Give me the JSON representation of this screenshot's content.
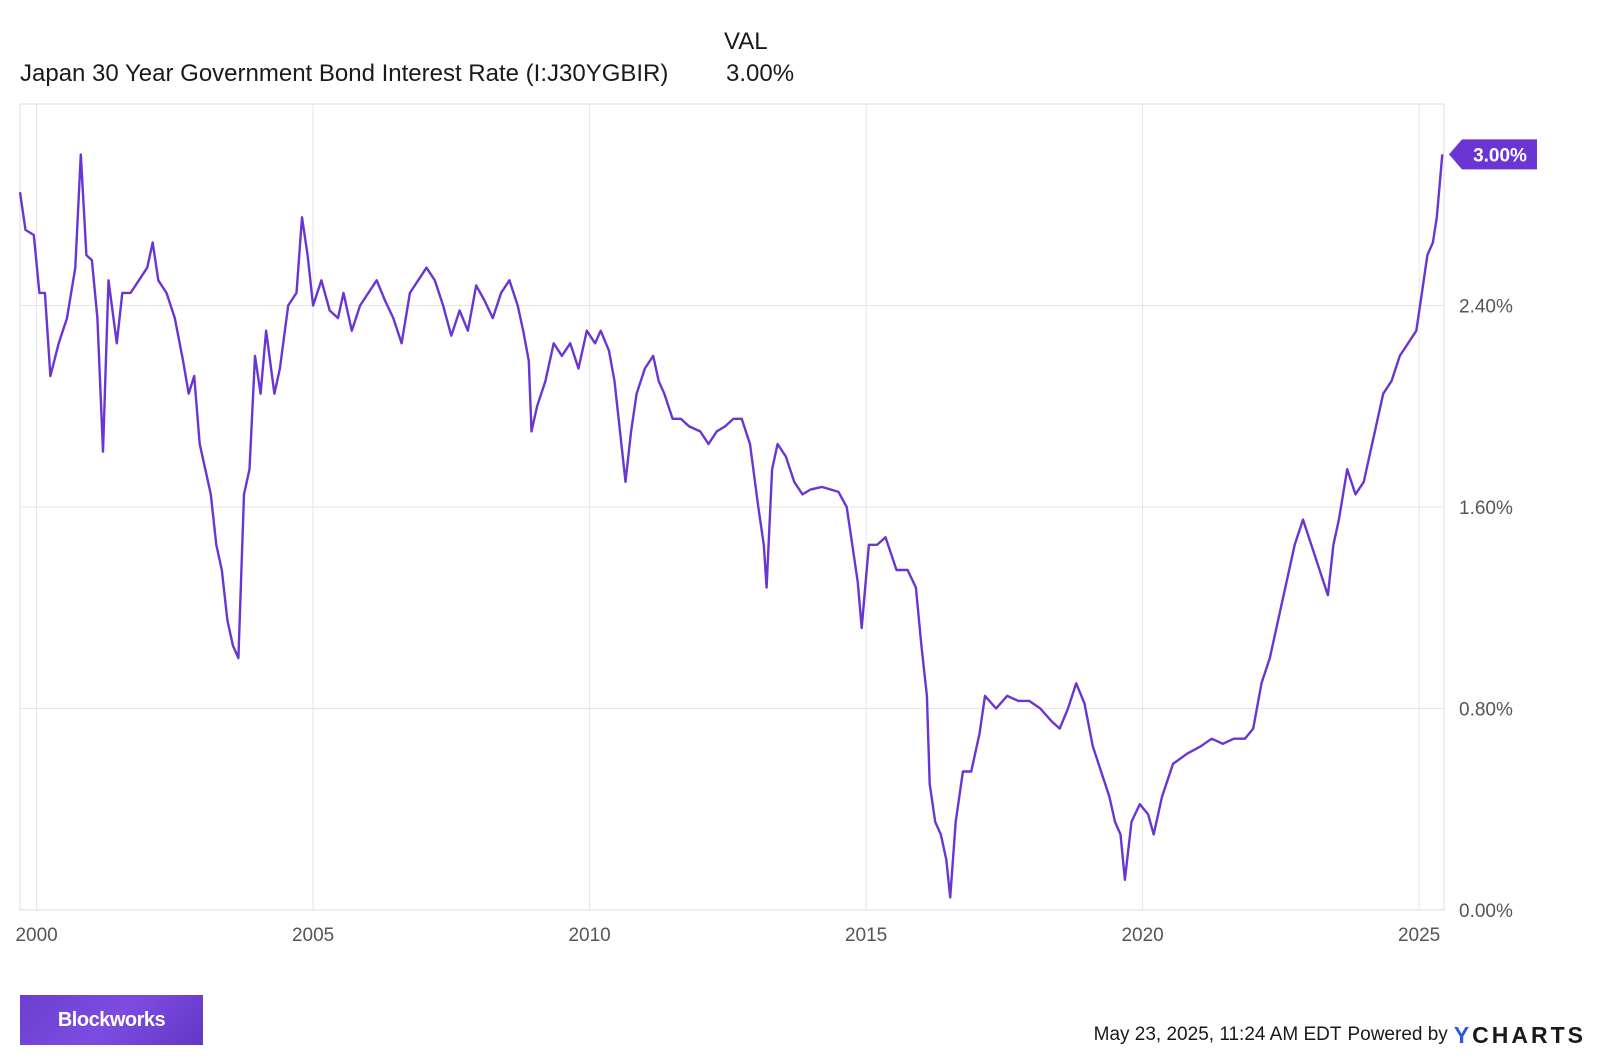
{
  "legend": {
    "column_header": "VAL",
    "series_name": "Japan 30 Year Government Bond Interest Rate (I:J30YGBIR)",
    "series_value": "3.00%"
  },
  "footer": {
    "logo_text": "Blockworks",
    "timestamp": "May 23, 2025, 11:24 AM EDT",
    "powered_by": "Powered by",
    "brand_y": "Y",
    "brand_rest": "CHARTS"
  },
  "colors": {
    "series": "#6a35d2",
    "grid": "#e6e6e6",
    "axis_text": "#555555"
  },
  "chart_data": {
    "type": "line",
    "title": "",
    "xlabel": "",
    "ylabel": "",
    "xlim": [
      1999.7,
      2025.45
    ],
    "ylim": [
      0,
      3.2
    ],
    "grid": true,
    "x_ticks": [
      2000,
      2005,
      2010,
      2015,
      2020,
      2025
    ],
    "x_tick_labels": [
      "2000",
      "2005",
      "2010",
      "2015",
      "2020",
      "2025"
    ],
    "y_ticks": [
      0,
      0.8,
      1.6,
      2.4
    ],
    "y_tick_labels": [
      "0.00%",
      "0.80%",
      "1.60%",
      "2.40%"
    ],
    "last_value_label": "3.00%",
    "series": [
      {
        "name": "Japan 30 Year Government Bond Interest Rate (I:J30YGBIR)",
        "points": [
          [
            1999.7,
            2.85
          ],
          [
            1999.8,
            2.7
          ],
          [
            1999.95,
            2.68
          ],
          [
            2000.05,
            2.45
          ],
          [
            2000.15,
            2.45
          ],
          [
            2000.25,
            2.12
          ],
          [
            2000.4,
            2.25
          ],
          [
            2000.55,
            2.35
          ],
          [
            2000.7,
            2.55
          ],
          [
            2000.8,
            3.0
          ],
          [
            2000.9,
            2.6
          ],
          [
            2001.0,
            2.58
          ],
          [
            2001.1,
            2.35
          ],
          [
            2001.2,
            1.82
          ],
          [
            2001.3,
            2.5
          ],
          [
            2001.45,
            2.25
          ],
          [
            2001.55,
            2.45
          ],
          [
            2001.7,
            2.45
          ],
          [
            2001.85,
            2.5
          ],
          [
            2002.0,
            2.55
          ],
          [
            2002.1,
            2.65
          ],
          [
            2002.2,
            2.5
          ],
          [
            2002.35,
            2.45
          ],
          [
            2002.5,
            2.35
          ],
          [
            2002.65,
            2.18
          ],
          [
            2002.75,
            2.05
          ],
          [
            2002.85,
            2.12
          ],
          [
            2002.95,
            1.85
          ],
          [
            2003.05,
            1.75
          ],
          [
            2003.15,
            1.65
          ],
          [
            2003.25,
            1.45
          ],
          [
            2003.35,
            1.35
          ],
          [
            2003.45,
            1.15
          ],
          [
            2003.55,
            1.05
          ],
          [
            2003.65,
            1.0
          ],
          [
            2003.75,
            1.65
          ],
          [
            2003.85,
            1.75
          ],
          [
            2003.95,
            2.2
          ],
          [
            2004.05,
            2.05
          ],
          [
            2004.15,
            2.3
          ],
          [
            2004.3,
            2.05
          ],
          [
            2004.4,
            2.15
          ],
          [
            2004.55,
            2.4
          ],
          [
            2004.7,
            2.45
          ],
          [
            2004.8,
            2.75
          ],
          [
            2004.9,
            2.6
          ],
          [
            2005.0,
            2.4
          ],
          [
            2005.15,
            2.5
          ],
          [
            2005.3,
            2.38
          ],
          [
            2005.45,
            2.35
          ],
          [
            2005.55,
            2.45
          ],
          [
            2005.7,
            2.3
          ],
          [
            2005.85,
            2.4
          ],
          [
            2006.0,
            2.45
          ],
          [
            2006.15,
            2.5
          ],
          [
            2006.3,
            2.42
          ],
          [
            2006.45,
            2.35
          ],
          [
            2006.6,
            2.25
          ],
          [
            2006.75,
            2.45
          ],
          [
            2006.9,
            2.5
          ],
          [
            2007.05,
            2.55
          ],
          [
            2007.2,
            2.5
          ],
          [
            2007.35,
            2.4
          ],
          [
            2007.5,
            2.28
          ],
          [
            2007.65,
            2.38
          ],
          [
            2007.8,
            2.3
          ],
          [
            2007.95,
            2.48
          ],
          [
            2008.1,
            2.42
          ],
          [
            2008.25,
            2.35
          ],
          [
            2008.4,
            2.45
          ],
          [
            2008.55,
            2.5
          ],
          [
            2008.7,
            2.4
          ],
          [
            2008.8,
            2.3
          ],
          [
            2008.9,
            2.18
          ],
          [
            2008.95,
            1.9
          ],
          [
            2009.05,
            2.0
          ],
          [
            2009.2,
            2.1
          ],
          [
            2009.35,
            2.25
          ],
          [
            2009.5,
            2.2
          ],
          [
            2009.65,
            2.25
          ],
          [
            2009.8,
            2.15
          ],
          [
            2009.95,
            2.3
          ],
          [
            2010.1,
            2.25
          ],
          [
            2010.2,
            2.3
          ],
          [
            2010.35,
            2.22
          ],
          [
            2010.45,
            2.1
          ],
          [
            2010.55,
            1.9
          ],
          [
            2010.65,
            1.7
          ],
          [
            2010.75,
            1.9
          ],
          [
            2010.85,
            2.05
          ],
          [
            2011.0,
            2.15
          ],
          [
            2011.15,
            2.2
          ],
          [
            2011.25,
            2.1
          ],
          [
            2011.35,
            2.05
          ],
          [
            2011.5,
            1.95
          ],
          [
            2011.65,
            1.95
          ],
          [
            2011.8,
            1.92
          ],
          [
            2012.0,
            1.9
          ],
          [
            2012.15,
            1.85
          ],
          [
            2012.3,
            1.9
          ],
          [
            2012.45,
            1.92
          ],
          [
            2012.6,
            1.95
          ],
          [
            2012.75,
            1.95
          ],
          [
            2012.9,
            1.85
          ],
          [
            2013.05,
            1.6
          ],
          [
            2013.15,
            1.45
          ],
          [
            2013.2,
            1.28
          ],
          [
            2013.3,
            1.75
          ],
          [
            2013.4,
            1.85
          ],
          [
            2013.55,
            1.8
          ],
          [
            2013.7,
            1.7
          ],
          [
            2013.85,
            1.65
          ],
          [
            2014.0,
            1.67
          ],
          [
            2014.2,
            1.68
          ],
          [
            2014.35,
            1.67
          ],
          [
            2014.5,
            1.66
          ],
          [
            2014.65,
            1.6
          ],
          [
            2014.75,
            1.45
          ],
          [
            2014.85,
            1.3
          ],
          [
            2014.92,
            1.12
          ],
          [
            2015.05,
            1.45
          ],
          [
            2015.2,
            1.45
          ],
          [
            2015.35,
            1.48
          ],
          [
            2015.55,
            1.35
          ],
          [
            2015.75,
            1.35
          ],
          [
            2015.9,
            1.28
          ],
          [
            2016.0,
            1.05
          ],
          [
            2016.1,
            0.85
          ],
          [
            2016.15,
            0.5
          ],
          [
            2016.25,
            0.35
          ],
          [
            2016.35,
            0.3
          ],
          [
            2016.45,
            0.2
          ],
          [
            2016.52,
            0.05
          ],
          [
            2016.62,
            0.35
          ],
          [
            2016.75,
            0.55
          ],
          [
            2016.9,
            0.55
          ],
          [
            2017.05,
            0.7
          ],
          [
            2017.15,
            0.85
          ],
          [
            2017.35,
            0.8
          ],
          [
            2017.55,
            0.85
          ],
          [
            2017.75,
            0.83
          ],
          [
            2017.95,
            0.83
          ],
          [
            2018.15,
            0.8
          ],
          [
            2018.35,
            0.75
          ],
          [
            2018.5,
            0.72
          ],
          [
            2018.65,
            0.8
          ],
          [
            2018.8,
            0.9
          ],
          [
            2018.95,
            0.82
          ],
          [
            2019.1,
            0.65
          ],
          [
            2019.25,
            0.55
          ],
          [
            2019.4,
            0.45
          ],
          [
            2019.5,
            0.35
          ],
          [
            2019.6,
            0.3
          ],
          [
            2019.68,
            0.12
          ],
          [
            2019.8,
            0.35
          ],
          [
            2019.95,
            0.42
          ],
          [
            2020.1,
            0.38
          ],
          [
            2020.2,
            0.3
          ],
          [
            2020.35,
            0.45
          ],
          [
            2020.55,
            0.58
          ],
          [
            2020.8,
            0.62
          ],
          [
            2021.05,
            0.65
          ],
          [
            2021.25,
            0.68
          ],
          [
            2021.45,
            0.66
          ],
          [
            2021.65,
            0.68
          ],
          [
            2021.85,
            0.68
          ],
          [
            2022.0,
            0.72
          ],
          [
            2022.15,
            0.9
          ],
          [
            2022.3,
            1.0
          ],
          [
            2022.45,
            1.15
          ],
          [
            2022.6,
            1.3
          ],
          [
            2022.75,
            1.45
          ],
          [
            2022.9,
            1.55
          ],
          [
            2023.05,
            1.45
          ],
          [
            2023.2,
            1.35
          ],
          [
            2023.35,
            1.25
          ],
          [
            2023.45,
            1.45
          ],
          [
            2023.55,
            1.55
          ],
          [
            2023.7,
            1.75
          ],
          [
            2023.85,
            1.65
          ],
          [
            2024.0,
            1.7
          ],
          [
            2024.1,
            1.8
          ],
          [
            2024.2,
            1.9
          ],
          [
            2024.35,
            2.05
          ],
          [
            2024.5,
            2.1
          ],
          [
            2024.65,
            2.2
          ],
          [
            2024.8,
            2.25
          ],
          [
            2024.95,
            2.3
          ],
          [
            2025.05,
            2.45
          ],
          [
            2025.15,
            2.6
          ],
          [
            2025.25,
            2.65
          ],
          [
            2025.32,
            2.75
          ],
          [
            2025.38,
            2.9
          ],
          [
            2025.42,
            3.0
          ]
        ]
      }
    ]
  }
}
